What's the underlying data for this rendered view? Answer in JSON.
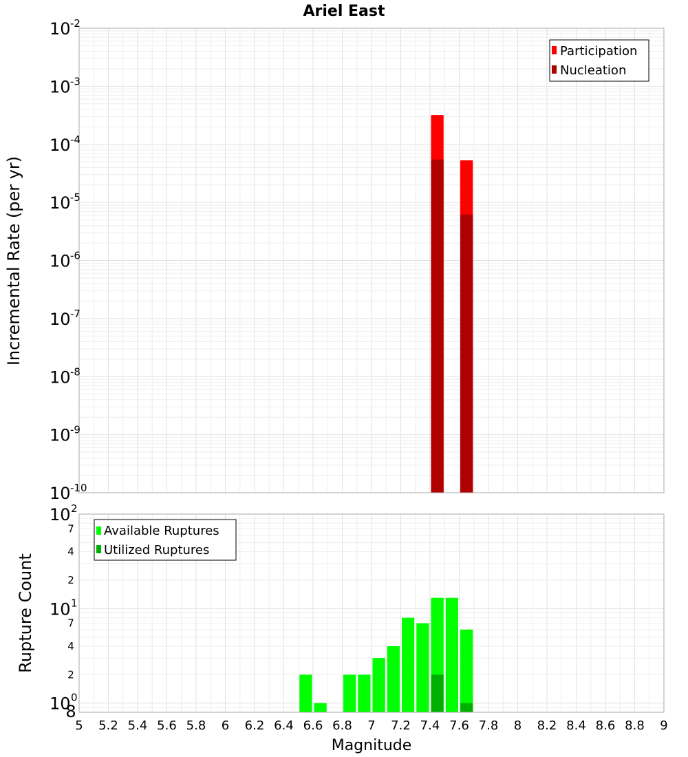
{
  "chart_data": [
    {
      "type": "bar",
      "title": "Ariel East",
      "xlabel": "",
      "ylabel": "Incremental Rate (per yr)",
      "xlim": [
        5,
        9
      ],
      "ylim": [
        1e-10,
        0.01
      ],
      "y_scale": "log",
      "grid": true,
      "legend_position": "top-right",
      "y_ticks": [
        {
          "base": "10",
          "exp": "-2",
          "value": 0.01
        },
        {
          "base": "10",
          "exp": "-3",
          "value": 0.001
        },
        {
          "base": "10",
          "exp": "-4",
          "value": 0.0001
        },
        {
          "base": "10",
          "exp": "-5",
          "value": 1e-05
        },
        {
          "base": "10",
          "exp": "-6",
          "value": 1e-06
        },
        {
          "base": "10",
          "exp": "-7",
          "value": 1e-07
        },
        {
          "base": "10",
          "exp": "-8",
          "value": 1e-08
        },
        {
          "base": "10",
          "exp": "-9",
          "value": 1e-09
        },
        {
          "base": "10",
          "exp": "-10",
          "value": 1e-10
        }
      ],
      "series": [
        {
          "name": "Participation",
          "color": "#ff0000",
          "x": [
            7.45,
            7.65
          ],
          "values": [
            0.00032,
            5.3e-05
          ]
        },
        {
          "name": "Nucleation",
          "color": "#b00000",
          "x": [
            7.45,
            7.65
          ],
          "values": [
            5.5e-05,
            6.2e-06
          ]
        }
      ]
    },
    {
      "type": "bar",
      "xlabel": "Magnitude",
      "ylabel": "Rupture Count",
      "xlim": [
        5,
        9
      ],
      "ylim": [
        0.8,
        100
      ],
      "y_scale": "log",
      "grid": true,
      "legend_position": "top-left",
      "x_tick_labels": [
        "5",
        "5.2",
        "5.4",
        "5.6",
        "5.8",
        "6",
        "6.2",
        "6.4",
        "6.6",
        "6.8",
        "7",
        "7.2",
        "7.4",
        "7.6",
        "7.8",
        "8",
        "8.2",
        "8.4",
        "8.6",
        "8.8",
        "9"
      ],
      "y_major_ticks": [
        {
          "base": "10",
          "exp": "2",
          "value": 100
        },
        {
          "base": "10",
          "exp": "1",
          "value": 10
        },
        {
          "base": "10",
          "exp": "0",
          "value": 1
        }
      ],
      "y_minor_labels": [
        "7",
        "4",
        "2",
        "7",
        "4",
        "2",
        "8"
      ],
      "y_minor_values": [
        70,
        40,
        20,
        7,
        4,
        2,
        0.8
      ],
      "series": [
        {
          "name": "Available Ruptures",
          "color": "#00ff00",
          "x": [
            6.55,
            6.65,
            6.85,
            6.95,
            7.05,
            7.15,
            7.25,
            7.35,
            7.45,
            7.55,
            7.65
          ],
          "values": [
            2,
            1,
            2,
            2,
            3,
            4,
            8,
            7,
            13,
            13,
            6
          ]
        },
        {
          "name": "Utilized Ruptures",
          "color": "#00b000",
          "x": [
            7.45,
            7.65
          ],
          "values": [
            2,
            1
          ]
        }
      ]
    }
  ]
}
